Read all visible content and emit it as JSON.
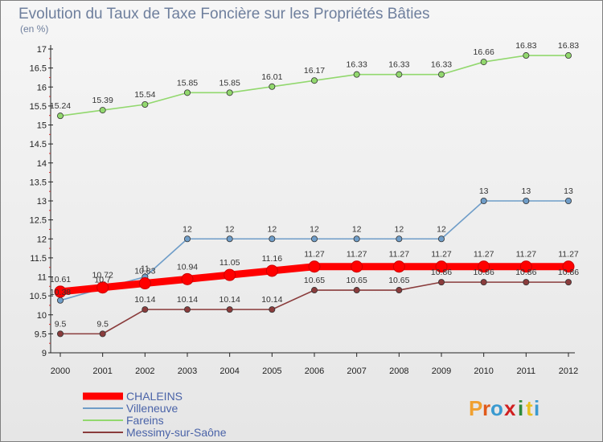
{
  "chart_data": {
    "type": "line",
    "title": "Evolution du Taux de Taxe Foncière sur les Propriétés Bâties",
    "subtitle": "(en %)",
    "x": [
      "2000",
      "2001",
      "2002",
      "2003",
      "2004",
      "2005",
      "2006",
      "2007",
      "2008",
      "2009",
      "2010",
      "2011",
      "2012"
    ],
    "ylim": [
      9,
      17
    ],
    "yticks": [
      "9",
      "9.5",
      "10",
      "10.5",
      "11",
      "11.5",
      "12",
      "12.5",
      "13",
      "13.5",
      "14",
      "14.5",
      "15",
      "15.5",
      "16",
      "16.5",
      "17"
    ],
    "grid": false,
    "legend_placement": "bottom-left",
    "series": [
      {
        "name": "CHALEINS",
        "color": "#ff0000",
        "labelcolor": "#ff0000",
        "values": [
          10.61,
          10.72,
          10.83,
          10.94,
          11.05,
          11.16,
          11.27,
          11.27,
          11.27,
          11.27,
          11.27,
          11.27,
          11.27
        ],
        "labels": [
          "10.61",
          "10.72",
          "10.83",
          "10.94",
          "11.05",
          "11.16",
          "11.27",
          "11.27",
          "11.27",
          "11.27",
          "11.27",
          "11.27",
          "11.27"
        ]
      },
      {
        "name": "Villeneuve",
        "color": "#6f9dc8",
        "labelcolor": "#3a78b8",
        "values": [
          10.38,
          10.7,
          11,
          12,
          12,
          12,
          12,
          12,
          12,
          12,
          13,
          13,
          13
        ],
        "labels": [
          "10.38",
          "10.7",
          "11",
          "12",
          "12",
          "12",
          "12",
          "12",
          "12",
          "12",
          "13",
          "13",
          "13"
        ]
      },
      {
        "name": "Fareins",
        "color": "#92d86e",
        "labelcolor": "#7cc04a",
        "values": [
          15.24,
          15.39,
          15.54,
          15.85,
          15.85,
          16.01,
          16.17,
          16.33,
          16.33,
          16.33,
          16.66,
          16.83,
          16.83
        ],
        "labels": [
          "15.24",
          "15.39",
          "15.54",
          "15.85",
          "15.85",
          "16.01",
          "16.17",
          "16.33",
          "16.33",
          "16.33",
          "16.66",
          "16.83",
          "16.83"
        ]
      },
      {
        "name": "Messimy-sur-Saône",
        "color": "#8a3c3c",
        "labelcolor": "#6a2020",
        "values": [
          9.5,
          9.5,
          10.14,
          10.14,
          10.14,
          10.14,
          10.65,
          10.65,
          10.65,
          10.86,
          10.86,
          10.86,
          10.86
        ],
        "labels": [
          "9.5",
          "9.5",
          "10.14",
          "10.14",
          "10.14",
          "10.14",
          "10.65",
          "10.65",
          "10.65",
          "10.86",
          "10.86",
          "10.86",
          "10.86"
        ]
      }
    ]
  },
  "logo": {
    "letters": [
      "P",
      "r",
      "o",
      "x",
      "i",
      "t",
      "i"
    ],
    "colors": [
      "#f0a030",
      "#e05a1a",
      "#3a9ad0",
      "#d02020",
      "#2e8a3c",
      "#e8c020",
      "#3a9ad0"
    ]
  }
}
